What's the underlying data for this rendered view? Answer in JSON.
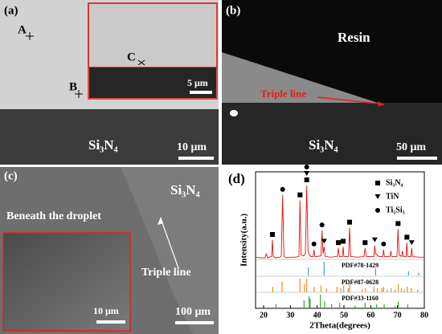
{
  "panels": [
    {
      "label": "(a)",
      "annotations": [
        "A",
        "B",
        "C",
        "5 μm",
        "Si₃N₄",
        "10 μm"
      ]
    },
    {
      "label": "(b)",
      "annotations": [
        "Resin",
        "Triple line",
        "Si₃N₄",
        "50 μm"
      ]
    },
    {
      "label": "(c)",
      "annotations": [
        "Si₃N₄",
        "Beneath the droplet",
        "Triple line",
        "10 μm",
        "100 μm"
      ]
    },
    {
      "label": "(d)"
    }
  ],
  "chart_data": {
    "type": "line",
    "x_label": "2Theta(degrees)",
    "y_label": "Intensity(a.u.)",
    "color": "#e01010",
    "xlim": [
      17,
      80
    ],
    "ylim": [
      0,
      100
    ],
    "xticks": [
      20,
      30,
      40,
      50,
      60,
      70,
      80
    ],
    "x": [
      17,
      19,
      20.5,
      21,
      21.5,
      22,
      23,
      23.3,
      23.6,
      24.5,
      26,
      26.6,
      27.1,
      27.6,
      28.5,
      30,
      32,
      33.2,
      33.6,
      34,
      35,
      35.6,
      36.1,
      36.6,
      37.5,
      38.5,
      38.8,
      39.1,
      40,
      41.4,
      41.8,
      42.2,
      42.6,
      43,
      45,
      47.5,
      47.9,
      48.3,
      49.4,
      49.7,
      50,
      51.7,
      52.1,
      52.5,
      55,
      57.5,
      57.9,
      58.3,
      61.2,
      61.5,
      61.8,
      63,
      64.5,
      64.8,
      65.1,
      67.2,
      67.5,
      67.8,
      69.8,
      70.2,
      70.6,
      71.5,
      71.8,
      72.1,
      73.2,
      73.5,
      73.8,
      75,
      75.3,
      75.6,
      78,
      80
    ],
    "values": [
      37.5,
      37,
      37,
      40,
      37,
      37.5,
      38,
      50,
      38,
      37,
      37.5,
      38,
      83,
      38,
      37,
      37.5,
      37.5,
      38,
      79,
      39,
      38.5,
      40,
      90,
      42,
      38,
      38,
      43,
      38,
      38,
      38.5,
      57,
      40,
      45,
      38,
      37.5,
      38,
      44,
      38,
      38,
      45,
      38,
      38,
      59,
      38,
      37.5,
      38,
      44,
      38,
      38,
      46,
      40,
      38,
      38,
      43,
      38,
      38,
      42,
      38,
      38,
      58,
      39,
      38,
      42,
      38,
      38,
      48,
      38,
      38,
      44,
      38,
      37.5,
      37.5
    ],
    "markers": [
      {
        "name": "Si₃N₄",
        "shape": "square",
        "x": [
          23.3,
          33.6,
          36.1,
          47.9,
          49.7,
          52.1,
          57.9,
          70.2,
          73.5
        ]
      },
      {
        "name": "TiN",
        "shape": "triangle",
        "x": [
          36.1,
          42.6,
          61.5,
          75.3
        ]
      },
      {
        "name": "Ti₅Si₃",
        "shape": "circle",
        "x": [
          27.1,
          36.1,
          38.8,
          41.8,
          64.8
        ]
      }
    ],
    "references": [
      {
        "name": "PDF#78-1429",
        "color": "#3a9fd8",
        "x": [
          36.7,
          42.6,
          61.8,
          74.1,
          77.9
        ],
        "values": [
          6,
          10,
          5,
          3,
          2
        ]
      },
      {
        "name": "PDF#87-0628",
        "color": "#e8902a",
        "x": [
          23.4,
          26.9,
          33.6,
          35.3,
          36.1,
          38.9,
          41.4,
          43.5,
          47.4,
          48.9,
          49.9,
          51.6,
          52.1,
          56.8,
          58.1,
          61.2,
          62.5,
          64.2,
          64.8,
          66.2,
          67.6,
          69.1,
          70.3,
          71.4,
          72.5,
          73.6,
          75.2,
          77.5
        ],
        "values": [
          4,
          8,
          10,
          6,
          10,
          4,
          5,
          3,
          4,
          3,
          5,
          3,
          6,
          2,
          3,
          4,
          3,
          3,
          4,
          2,
          3,
          2,
          6,
          3,
          2,
          4,
          3,
          2
        ]
      },
      {
        "name": "PDF#33-1160",
        "color": "#3aa63a",
        "x": [
          24.6,
          35.1,
          37.0,
          37.4,
          41.2,
          42.8,
          45.4,
          48.4,
          54.1,
          57.9,
          62.2,
          65.0,
          69.0,
          70.3,
          73.8
        ],
        "values": [
          3,
          6,
          9,
          7,
          10,
          5,
          3,
          4,
          2,
          4,
          3,
          3,
          2,
          5,
          3
        ]
      }
    ]
  }
}
